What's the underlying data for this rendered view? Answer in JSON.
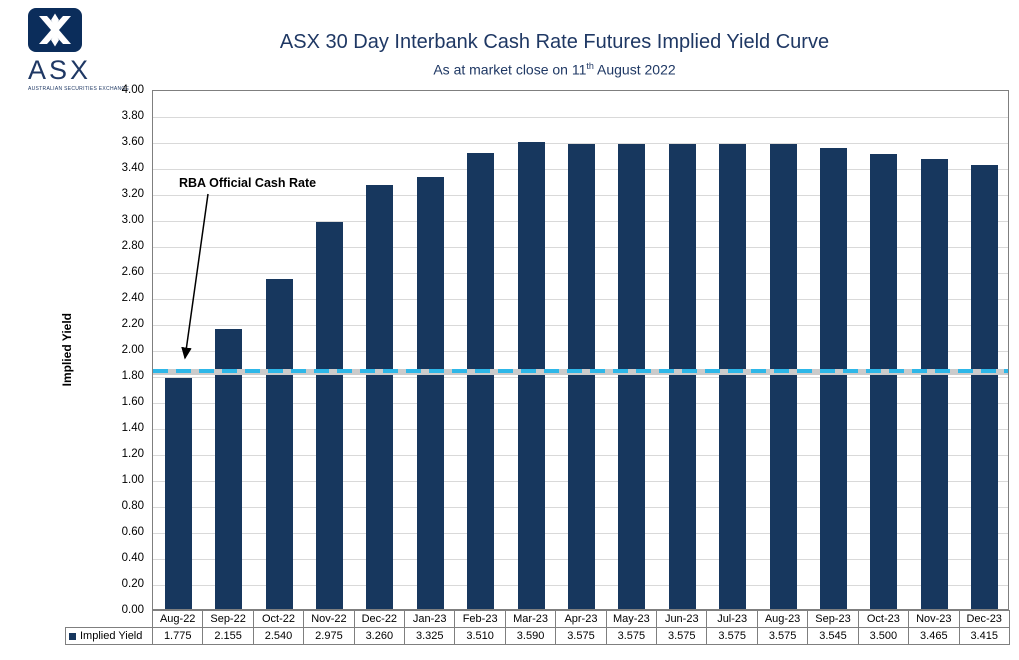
{
  "page": {
    "background": "#FFFFFF"
  },
  "logo": {
    "brand": "ASX",
    "caption": "AUSTRALIAN SECURITIES EXCHANGE"
  },
  "header": {
    "title": "ASX 30 Day Interbank Cash Rate Futures Implied Yield Curve",
    "subtitle_prefix": "As at market close on 11",
    "subtitle_sup": "th",
    "subtitle_suffix": " August 2022"
  },
  "colors": {
    "bar": "#17375E",
    "title_text": "#1F3864",
    "dashed_line": "#2EB7E8",
    "gridline": "#D9D9D9",
    "table_border": "#7F7F7F"
  },
  "chart_data": {
    "type": "bar",
    "title": "ASX 30 Day Interbank Cash Rate Futures Implied Yield Curve",
    "subtitle": "As at market close on 11th August 2022",
    "categories": [
      "Aug-22",
      "Sep-22",
      "Oct-22",
      "Nov-22",
      "Dec-22",
      "Jan-23",
      "Feb-23",
      "Mar-23",
      "Apr-23",
      "May-23",
      "Jun-23",
      "Jul-23",
      "Aug-23",
      "Sep-23",
      "Oct-23",
      "Nov-23",
      "Dec-23"
    ],
    "series": [
      {
        "name": "Implied Yield",
        "values": [
          1.775,
          2.155,
          2.54,
          2.975,
          3.26,
          3.325,
          3.51,
          3.59,
          3.575,
          3.575,
          3.575,
          3.575,
          3.575,
          3.545,
          3.5,
          3.465,
          3.415
        ]
      }
    ],
    "xlabel": "",
    "ylabel": "Implied Yield",
    "ylim": [
      0,
      4.0
    ],
    "ytick_step": 0.2,
    "grid": true,
    "legend": "data-table-below-axis",
    "reference_line": {
      "label": "RBA Official Cash Rate",
      "value": 1.85,
      "style": "dashed",
      "color": "#2EB7E8"
    }
  }
}
